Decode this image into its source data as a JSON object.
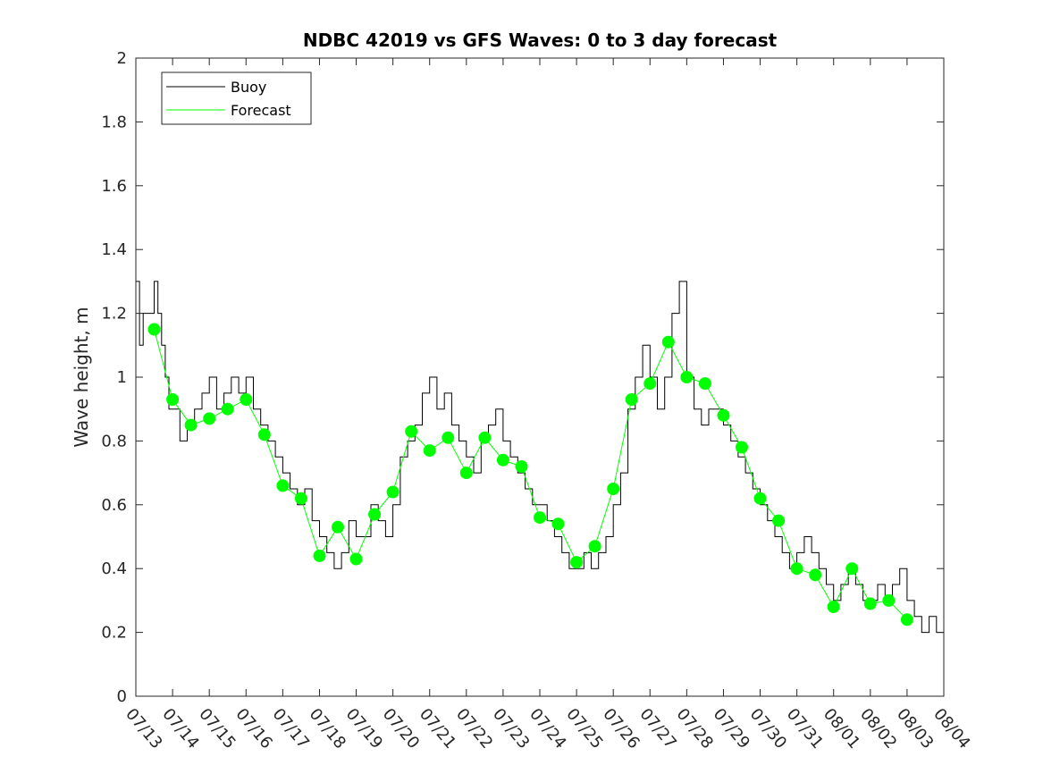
{
  "chart_data": {
    "type": "line",
    "title": "NDBC 42019 vs GFS Waves: 0 to 3 day forecast",
    "xlabel": "",
    "ylabel": "Wave height, m",
    "xlim": [
      "07/13",
      "08/04"
    ],
    "ylim": [
      0,
      2
    ],
    "x_tick_labels": [
      "07/13",
      "07/14",
      "07/15",
      "07/16",
      "07/17",
      "07/18",
      "07/19",
      "07/20",
      "07/21",
      "07/22",
      "07/23",
      "07/24",
      "07/25",
      "07/26",
      "07/27",
      "07/28",
      "07/29",
      "07/30",
      "07/31",
      "08/01",
      "08/02",
      "08/03",
      "08/04"
    ],
    "y_ticks": [
      0,
      0.2,
      0.4,
      0.6,
      0.8,
      1,
      1.2,
      1.4,
      1.6,
      1.8,
      2
    ],
    "y_tick_labels": [
      "0",
      "0.2",
      "0.4",
      "0.6",
      "0.8",
      "1",
      "1.2",
      "1.4",
      "1.6",
      "1.8",
      "2"
    ],
    "grid": false,
    "legend": {
      "placement": "top-left",
      "entries": [
        "Buoy",
        "Forecast"
      ]
    },
    "colors": {
      "buoy": "#000000",
      "forecast": "#00ff00",
      "axes": "#262626"
    },
    "series": [
      {
        "name": "Buoy",
        "x_day_in_july": [
          13.0,
          13.1,
          13.2,
          13.3,
          13.5,
          13.6,
          13.7,
          13.8,
          13.9,
          14.0,
          14.2,
          14.4,
          14.6,
          14.8,
          15.0,
          15.2,
          15.4,
          15.6,
          15.8,
          16.0,
          16.2,
          16.4,
          16.6,
          16.8,
          17.0,
          17.2,
          17.4,
          17.6,
          17.8,
          18.0,
          18.2,
          18.4,
          18.6,
          18.8,
          19.0,
          19.2,
          19.4,
          19.6,
          19.8,
          20.0,
          20.2,
          20.4,
          20.6,
          20.8,
          21.0,
          21.2,
          21.4,
          21.6,
          21.8,
          22.0,
          22.2,
          22.4,
          22.6,
          22.8,
          23.0,
          23.2,
          23.4,
          23.6,
          23.8,
          24.0,
          24.2,
          24.4,
          24.6,
          24.8,
          25.0,
          25.2,
          25.4,
          25.6,
          25.8,
          26.0,
          26.2,
          26.4,
          26.6,
          26.8,
          27.0,
          27.2,
          27.4,
          27.6,
          27.8,
          28.0,
          28.2,
          28.4,
          28.6,
          28.8,
          29.0,
          29.2,
          29.4,
          29.6,
          29.8,
          30.0,
          30.2,
          30.4,
          30.6,
          30.8,
          31.0,
          31.2,
          31.4,
          31.6,
          31.8,
          32.0,
          32.2,
          32.4,
          32.6,
          32.8,
          33.0,
          33.2,
          33.4,
          33.6,
          33.8,
          34.0,
          34.2,
          34.4,
          34.6,
          34.8,
          35.0
        ],
        "values": [
          1.3,
          1.1,
          1.2,
          1.2,
          1.3,
          1.2,
          1.1,
          1.0,
          0.9,
          0.9,
          0.8,
          0.85,
          0.9,
          0.95,
          1.0,
          0.9,
          0.95,
          1.0,
          0.95,
          1.0,
          0.9,
          0.85,
          0.8,
          0.75,
          0.7,
          0.65,
          0.6,
          0.65,
          0.55,
          0.5,
          0.45,
          0.4,
          0.45,
          0.55,
          0.5,
          0.5,
          0.6,
          0.55,
          0.5,
          0.6,
          0.75,
          0.8,
          0.85,
          0.95,
          1.0,
          0.9,
          0.95,
          0.85,
          0.8,
          0.75,
          0.7,
          0.8,
          0.85,
          0.9,
          0.8,
          0.75,
          0.7,
          0.65,
          0.6,
          0.6,
          0.55,
          0.5,
          0.45,
          0.4,
          0.4,
          0.45,
          0.4,
          0.45,
          0.5,
          0.6,
          0.7,
          0.9,
          1.0,
          1.1,
          1.0,
          0.9,
          1.0,
          1.2,
          1.3,
          1.0,
          0.9,
          0.85,
          0.9,
          0.9,
          0.85,
          0.8,
          0.75,
          0.7,
          0.65,
          0.6,
          0.55,
          0.5,
          0.45,
          0.4,
          0.45,
          0.5,
          0.45,
          0.4,
          0.35,
          0.3,
          0.35,
          0.4,
          0.35,
          0.3,
          0.3,
          0.35,
          0.3,
          0.35,
          0.4,
          0.3,
          0.25,
          0.2,
          0.25,
          0.2,
          0.22,
          0.21
        ]
      },
      {
        "name": "Forecast",
        "x_day_in_july": [
          13.5,
          14.0,
          14.5,
          15.0,
          15.5,
          16.0,
          16.5,
          17.0,
          17.5,
          18.0,
          18.5,
          19.0,
          19.5,
          20.0,
          20.5,
          21.0,
          21.5,
          22.0,
          22.5,
          23.0,
          23.5,
          24.0,
          24.5,
          25.0,
          25.5,
          26.0,
          26.5,
          27.0,
          27.5,
          28.0,
          28.5,
          29.0,
          29.5,
          30.0,
          30.5,
          31.0,
          31.5,
          32.0,
          32.5,
          33.0,
          33.5,
          34.0
        ],
        "values": [
          1.15,
          0.93,
          0.85,
          0.87,
          0.9,
          0.93,
          0.82,
          0.66,
          0.62,
          0.44,
          0.53,
          0.43,
          0.57,
          0.64,
          0.83,
          0.77,
          0.81,
          0.7,
          0.81,
          0.74,
          0.72,
          0.56,
          0.54,
          0.42,
          0.47,
          0.65,
          0.93,
          0.98,
          1.11,
          1.0,
          0.98,
          0.88,
          0.78,
          0.62,
          0.55,
          0.4,
          0.38,
          0.28,
          0.4,
          0.29,
          0.3,
          0.24
        ]
      }
    ]
  }
}
